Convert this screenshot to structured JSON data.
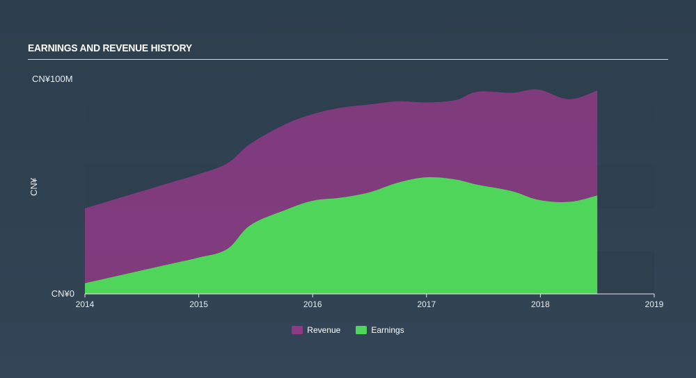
{
  "title": "EARNINGS AND REVENUE HISTORY",
  "colors": {
    "revenue": "#8e3b86",
    "earnings": "#4fd65a",
    "band": "#2f3f4e"
  },
  "chart_data": {
    "type": "area",
    "title": "EARNINGS AND REVENUE HISTORY",
    "y_tick_labels": [
      "CN¥0",
      "CN¥100M"
    ],
    "y_axis_label": "CN¥",
    "ylim": [
      0,
      100
    ],
    "xlim": [
      2014,
      2019
    ],
    "x_ticks": [
      "2014",
      "2015",
      "2016",
      "2017",
      "2018",
      "2019"
    ],
    "legend": [
      "Revenue",
      "Earnings"
    ],
    "legend_position": "bottom-center",
    "series": [
      {
        "name": "Revenue",
        "unit": "CN¥M",
        "points": [
          [
            2014.0,
            40
          ],
          [
            2014.25,
            44
          ],
          [
            2014.5,
            48
          ],
          [
            2014.75,
            52
          ],
          [
            2015.0,
            56
          ],
          [
            2015.25,
            61
          ],
          [
            2015.45,
            70
          ],
          [
            2015.75,
            79
          ],
          [
            2016.0,
            84
          ],
          [
            2016.25,
            87
          ],
          [
            2016.5,
            88.5
          ],
          [
            2016.75,
            90
          ],
          [
            2017.0,
            89.5
          ],
          [
            2017.25,
            90.5
          ],
          [
            2017.45,
            94.5
          ],
          [
            2017.75,
            94
          ],
          [
            2017.98,
            95.5
          ],
          [
            2018.25,
            91
          ],
          [
            2018.5,
            95
          ]
        ]
      },
      {
        "name": "Earnings",
        "unit": "CN¥M",
        "points": [
          [
            2014.0,
            5
          ],
          [
            2014.25,
            8
          ],
          [
            2014.5,
            11
          ],
          [
            2014.75,
            14
          ],
          [
            2015.0,
            17
          ],
          [
            2015.25,
            21
          ],
          [
            2015.45,
            32
          ],
          [
            2015.75,
            39
          ],
          [
            2016.0,
            43.5
          ],
          [
            2016.25,
            45
          ],
          [
            2016.5,
            47.5
          ],
          [
            2016.75,
            52
          ],
          [
            2017.0,
            54.5
          ],
          [
            2017.25,
            53.5
          ],
          [
            2017.45,
            51
          ],
          [
            2017.75,
            48
          ],
          [
            2017.98,
            44
          ],
          [
            2018.25,
            43
          ],
          [
            2018.5,
            46
          ]
        ]
      }
    ]
  }
}
